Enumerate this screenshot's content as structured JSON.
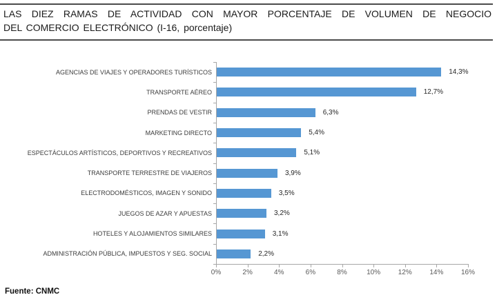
{
  "header": {
    "title_line1": "LAS DIEZ RAMAS DE ACTIVIDAD CON MAYOR PORCENTAJE DE VOLUMEN DE NEGOCIO",
    "title_line2": "DEL COMERCIO ELECTRÓNICO (I-16, porcentaje)"
  },
  "footer": {
    "source": "Fuente: CNMC"
  },
  "chart_data": {
    "type": "bar",
    "orientation": "horizontal",
    "title": "LAS DIEZ RAMAS DE ACTIVIDAD CON MAYOR PORCENTAJE DE VOLUMEN DE NEGOCIO DEL COMERCIO ELECTRÓNICO (I-16, porcentaje)",
    "categories": [
      "AGENCIAS DE VIAJES Y OPERADORES TURÍSTICOS",
      "TRANSPORTE AÉREO",
      "PRENDAS DE VESTIR",
      "MARKETING DIRECTO",
      "ESPECTÁCULOS ARTÍSTICOS, DEPORTIVOS Y RECREATIVOS",
      "TRANSPORTE TERRESTRE DE VIAJEROS",
      "ELECTRODOMÉSTICOS, IMAGEN Y SONIDO",
      "JUEGOS DE AZAR Y APUESTAS",
      "HOTELES Y ALOJAMIENTOS SIMILARES",
      "ADMINISTRACIÓN PÚBLICA, IMPUESTOS Y SEG. SOCIAL"
    ],
    "values": [
      14.3,
      12.7,
      6.3,
      5.4,
      5.1,
      3.9,
      3.5,
      3.2,
      3.1,
      2.2
    ],
    "value_labels": [
      "14,3%",
      "12,7%",
      "6,3%",
      "5,4%",
      "5,1%",
      "3,9%",
      "3,5%",
      "3,2%",
      "3,1%",
      "2,2%"
    ],
    "xlim": [
      0,
      16
    ],
    "x_ticks": [
      "0%",
      "2%",
      "4%",
      "6%",
      "8%",
      "10%",
      "12%",
      "14%",
      "16%"
    ],
    "xlabel": "",
    "ylabel": "",
    "grid": false,
    "legend": false,
    "bar_color": "#5697d3",
    "axis_color": "#a6a6a6"
  }
}
